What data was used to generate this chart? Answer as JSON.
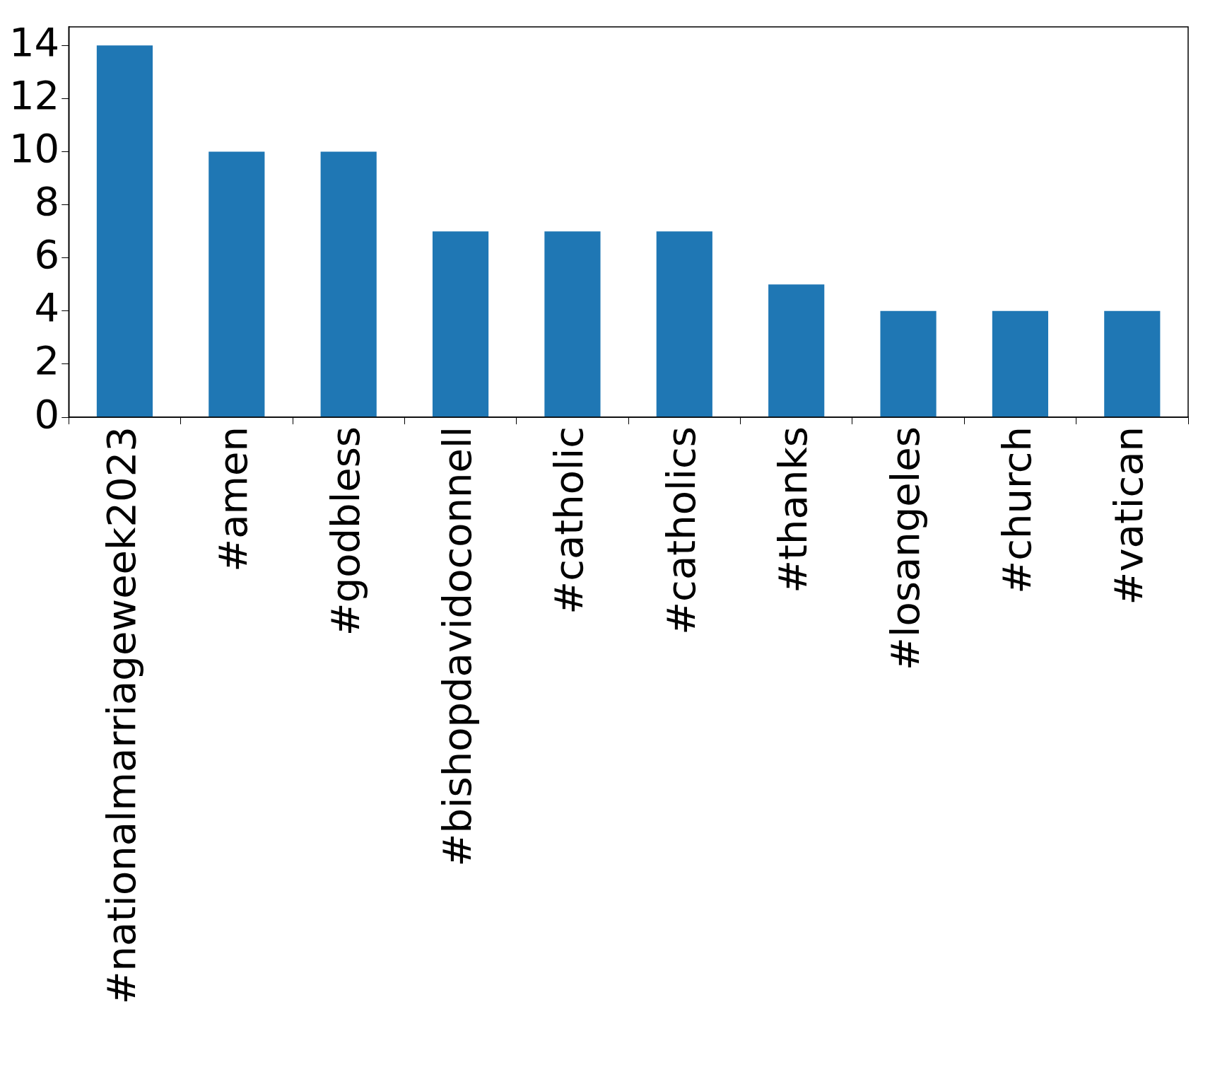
{
  "chart_data": {
    "type": "bar",
    "categories": [
      "#nationalmarriageweek2023",
      "#amen",
      "#godbless",
      "#bishopdavidoconnell",
      "#catholic",
      "#catholics",
      "#thanks",
      "#losangeles",
      "#church",
      "#vatican"
    ],
    "values": [
      14,
      10,
      10,
      7,
      7,
      7,
      5,
      4,
      4,
      4
    ],
    "color": "#1f77b4",
    "ylim": [
      0,
      14.7
    ],
    "yticks": [
      0,
      2,
      4,
      6,
      8,
      10,
      12,
      14
    ],
    "grid": false,
    "legend": false
  }
}
